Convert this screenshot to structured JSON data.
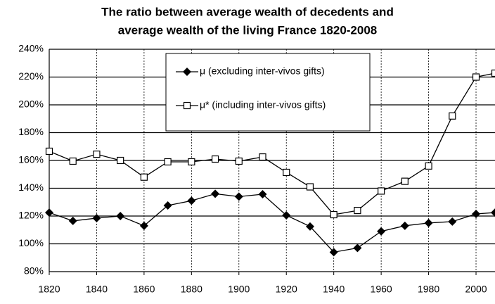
{
  "chart_data": {
    "type": "line",
    "title": [
      "The ratio between average wealth of decedents and",
      "average wealth of the living France 1820-2008"
    ],
    "x": [
      1820,
      1830,
      1840,
      1850,
      1860,
      1870,
      1880,
      1890,
      1900,
      1910,
      1920,
      1930,
      1940,
      1950,
      1960,
      1970,
      1980,
      1990,
      2000,
      2008
    ],
    "series": [
      {
        "name": "μ (excluding inter-vivos gifts)",
        "color": "#000000",
        "marker": "diamond",
        "values": [
          122.5,
          116.5,
          118.5,
          120,
          113,
          127.6,
          131,
          136,
          134,
          135.7,
          120.5,
          112.5,
          94,
          97,
          109,
          113,
          115,
          116,
          121.5,
          122.5
        ]
      },
      {
        "name": "μ* (including inter-vivos gifts)",
        "color": "#000000",
        "marker": "square",
        "values": [
          166.6,
          159.5,
          164.5,
          160,
          148,
          159,
          159,
          161,
          159.5,
          162.5,
          151.4,
          141,
          121,
          124,
          138,
          145,
          156,
          192,
          220,
          222.8
        ]
      }
    ],
    "xlim": [
      1820,
      2008
    ],
    "xticks": [
      1820,
      1840,
      1860,
      1880,
      1900,
      1920,
      1940,
      1960,
      1980,
      2000
    ],
    "ylim": [
      80,
      240
    ],
    "yticks": [
      {
        "value": 80,
        "label": "80%"
      },
      {
        "value": 100,
        "label": "100%"
      },
      {
        "value": 120,
        "label": "120%"
      },
      {
        "value": 140,
        "label": "140%"
      },
      {
        "value": 160,
        "label": "160%"
      },
      {
        "value": 180,
        "label": "180%"
      },
      {
        "value": 200,
        "label": "200%"
      },
      {
        "value": 220,
        "label": "220%"
      },
      {
        "value": 240,
        "label": "240%"
      }
    ],
    "grid": true
  }
}
